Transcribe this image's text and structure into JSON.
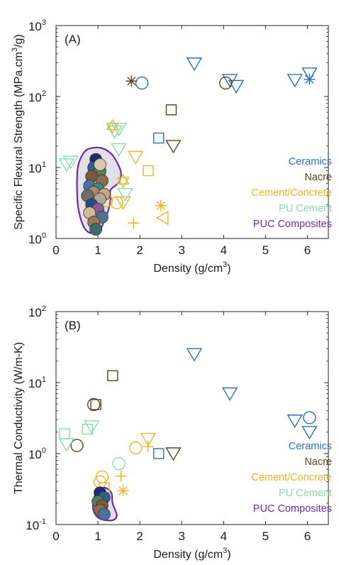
{
  "colors": {
    "Ceramics": "#2e6fb5",
    "Nacre": "#5a4420",
    "Cement/Concrete": "#f0b323",
    "PU Cement": "#86dca8",
    "PUC Composites": "#6a2d9a"
  },
  "chart_data": [
    {
      "type": "scatter",
      "panel_label": "(A)",
      "xlabel_main": "Density (g/cm",
      "xlabel_sup": "3",
      "xlabel_end": ")",
      "ylabel_main": "Specific Flexural Strength (MPa.cm",
      "ylabel_sup": "3",
      "ylabel_end": "/g)",
      "xlim": [
        0,
        6.5
      ],
      "ylim": [
        1,
        1000
      ],
      "yscale": "log",
      "x_ticks": [
        "0",
        "1",
        "2",
        "3",
        "4",
        "5",
        "6"
      ],
      "y_ticks": [
        {
          "base": "10",
          "exp": "0"
        },
        {
          "base": "10",
          "exp": "1"
        },
        {
          "base": "10",
          "exp": "2"
        },
        {
          "base": "10",
          "exp": "3"
        }
      ],
      "legend": [
        "Ceramics",
        "Nacre",
        "Cement/Concrete",
        "PU Cement",
        "PUC Composites"
      ],
      "legend_position": "lower-right",
      "series": [
        {
          "name": "Ceramics",
          "points": [
            {
              "x": 2.05,
              "y": 155,
              "m": "circle"
            },
            {
              "x": 2.45,
              "y": 26,
              "m": "square"
            },
            {
              "x": 3.3,
              "y": 290,
              "m": "tri-down"
            },
            {
              "x": 4.15,
              "y": 170,
              "m": "tri-down"
            },
            {
              "x": 4.3,
              "y": 140,
              "m": "tri-down"
            },
            {
              "x": 5.7,
              "y": 170,
              "m": "tri-down"
            },
            {
              "x": 6.05,
              "y": 210,
              "m": "tri-down"
            },
            {
              "x": 6.05,
              "y": 175,
              "m": "asterisk"
            }
          ]
        },
        {
          "name": "Nacre",
          "points": [
            {
              "x": 1.8,
              "y": 165,
              "m": "asterisk"
            },
            {
              "x": 2.75,
              "y": 65,
              "m": "square"
            },
            {
              "x": 2.8,
              "y": 20,
              "m": "tri-down"
            },
            {
              "x": 4.05,
              "y": 155,
              "m": "circle"
            }
          ]
        },
        {
          "name": "Cement/Concrete",
          "points": [
            {
              "x": 1.35,
              "y": 38,
              "m": "hexagram"
            },
            {
              "x": 1.6,
              "y": 6.5,
              "m": "hexagram"
            },
            {
              "x": 1.6,
              "y": 3.2,
              "m": "tri-down"
            },
            {
              "x": 1.9,
              "y": 14,
              "m": "tri-down"
            },
            {
              "x": 2.2,
              "y": 9,
              "m": "square"
            },
            {
              "x": 1.85,
              "y": 1.65,
              "m": "plus"
            },
            {
              "x": 2.5,
              "y": 2.9,
              "m": "asterisk"
            },
            {
              "x": 2.55,
              "y": 1.95,
              "m": "tri-left"
            },
            {
              "x": 1.2,
              "y": 3.4,
              "m": "circle"
            },
            {
              "x": 1.45,
              "y": 3.2,
              "m": "circle"
            }
          ]
        },
        {
          "name": "PU Cement",
          "points": [
            {
              "x": 0.25,
              "y": 11,
              "m": "tri-down"
            },
            {
              "x": 0.35,
              "y": 12,
              "m": "tri-down"
            },
            {
              "x": 1.4,
              "y": 32,
              "m": "tri-down"
            },
            {
              "x": 1.5,
              "y": 35,
              "m": "tri-down"
            },
            {
              "x": 1.5,
              "y": 18,
              "m": "tri-down"
            },
            {
              "x": 1.65,
              "y": 4.2,
              "m": "tri-down"
            }
          ]
        },
        {
          "name": "PUC Composites",
          "points": [
            {
              "x": 0.95,
              "y": 13,
              "m": "circle"
            },
            {
              "x": 0.9,
              "y": 10,
              "m": "circle"
            },
            {
              "x": 1.05,
              "y": 8.8,
              "m": "circle"
            },
            {
              "x": 0.85,
              "y": 7.5,
              "m": "circle"
            },
            {
              "x": 1.1,
              "y": 6.5,
              "m": "circle"
            },
            {
              "x": 0.8,
              "y": 5.5,
              "m": "circle"
            },
            {
              "x": 1.0,
              "y": 5.0,
              "m": "circle"
            },
            {
              "x": 0.9,
              "y": 4.5,
              "m": "circle"
            },
            {
              "x": 1.15,
              "y": 4.2,
              "m": "circle"
            },
            {
              "x": 0.75,
              "y": 4.0,
              "m": "circle"
            },
            {
              "x": 1.05,
              "y": 3.6,
              "m": "circle"
            },
            {
              "x": 0.85,
              "y": 3.0,
              "m": "circle"
            },
            {
              "x": 1.0,
              "y": 2.6,
              "m": "circle"
            },
            {
              "x": 0.8,
              "y": 2.3,
              "m": "circle"
            },
            {
              "x": 1.1,
              "y": 2.0,
              "m": "circle"
            },
            {
              "x": 0.9,
              "y": 1.7,
              "m": "circle"
            },
            {
              "x": 0.95,
              "y": 1.35,
              "m": "circle"
            },
            {
              "x": 1.05,
              "y": 11,
              "m": "circle"
            }
          ]
        }
      ],
      "region": [
        [
          0.6,
          14
        ],
        [
          0.75,
          18
        ],
        [
          1.05,
          19
        ],
        [
          1.3,
          16
        ],
        [
          1.45,
          12
        ],
        [
          1.55,
          8.5
        ],
        [
          1.5,
          6.2
        ],
        [
          1.3,
          4.8
        ],
        [
          1.3,
          3.5
        ],
        [
          1.25,
          2.5
        ],
        [
          1.15,
          1.8
        ],
        [
          1.05,
          1.3
        ],
        [
          0.9,
          1.18
        ],
        [
          0.72,
          1.3
        ],
        [
          0.6,
          1.8
        ],
        [
          0.52,
          3
        ],
        [
          0.5,
          6
        ],
        [
          0.52,
          10
        ]
      ]
    },
    {
      "type": "scatter",
      "panel_label": "(B)",
      "xlabel_main": "Density (g/cm",
      "xlabel_sup": "3",
      "xlabel_end": ")",
      "ylabel_main": "Thermal Conductivity (W/m-K)",
      "ylabel_sup": "",
      "ylabel_end": "",
      "xlim": [
        0,
        6.5
      ],
      "ylim": [
        0.1,
        100
      ],
      "yscale": "log",
      "x_ticks": [
        "0",
        "1",
        "2",
        "3",
        "4",
        "5",
        "6"
      ],
      "y_ticks": [
        {
          "base": "10",
          "exp": "-1"
        },
        {
          "base": "10",
          "exp": "0"
        },
        {
          "base": "10",
          "exp": "1"
        },
        {
          "base": "10",
          "exp": "2"
        }
      ],
      "legend": [
        "Ceramics",
        "Nacre",
        "Cement/Concrete",
        "PU Cement",
        "PUC Composites"
      ],
      "legend_position": "lower-right",
      "series": [
        {
          "name": "Ceramics",
          "points": [
            {
              "x": 2.45,
              "y": 1.0,
              "m": "square"
            },
            {
              "x": 3.3,
              "y": 25,
              "m": "tri-down"
            },
            {
              "x": 4.15,
              "y": 7,
              "m": "tri-down"
            },
            {
              "x": 5.7,
              "y": 2.9,
              "m": "tri-down"
            },
            {
              "x": 6.05,
              "y": 3.2,
              "m": "circle"
            },
            {
              "x": 6.05,
              "y": 2.0,
              "m": "tri-down"
            }
          ]
        },
        {
          "name": "Nacre",
          "points": [
            {
              "x": 0.5,
              "y": 1.3,
              "m": "circle"
            },
            {
              "x": 0.9,
              "y": 4.9,
              "m": "circle"
            },
            {
              "x": 0.95,
              "y": 4.9,
              "m": "square"
            },
            {
              "x": 1.35,
              "y": 12.5,
              "m": "square"
            },
            {
              "x": 2.8,
              "y": 1.0,
              "m": "tri-down"
            }
          ]
        },
        {
          "name": "Cement/Concrete",
          "points": [
            {
              "x": 1.1,
              "y": 0.47,
              "m": "circle"
            },
            {
              "x": 1.05,
              "y": 0.4,
              "m": "circle"
            },
            {
              "x": 1.15,
              "y": 0.33,
              "m": "square"
            },
            {
              "x": 1.55,
              "y": 0.48,
              "m": "plus"
            },
            {
              "x": 1.6,
              "y": 0.3,
              "m": "asterisk"
            },
            {
              "x": 1.9,
              "y": 1.2,
              "m": "circle"
            },
            {
              "x": 2.2,
              "y": 1.6,
              "m": "tri-down"
            },
            {
              "x": 2.2,
              "y": 1.25,
              "m": "plus"
            }
          ]
        },
        {
          "name": "PU Cement",
          "points": [
            {
              "x": 0.2,
              "y": 1.9,
              "m": "square"
            },
            {
              "x": 0.25,
              "y": 1.35,
              "m": "tri-down"
            },
            {
              "x": 0.75,
              "y": 2.2,
              "m": "square"
            },
            {
              "x": 0.85,
              "y": 2.4,
              "m": "tri-down"
            },
            {
              "x": 1.5,
              "y": 0.72,
              "m": "circle"
            }
          ]
        },
        {
          "name": "PUC Composites",
          "points": [
            {
              "x": 1.05,
              "y": 0.28,
              "m": "circle"
            },
            {
              "x": 1.15,
              "y": 0.24,
              "m": "circle"
            },
            {
              "x": 1.0,
              "y": 0.21,
              "m": "circle"
            },
            {
              "x": 1.1,
              "y": 0.185,
              "m": "circle"
            },
            {
              "x": 1.05,
              "y": 0.16,
              "m": "circle"
            },
            {
              "x": 1.15,
              "y": 0.14,
              "m": "circle"
            }
          ]
        }
      ],
      "region": [
        [
          0.95,
          0.27
        ],
        [
          1.15,
          0.33
        ],
        [
          1.32,
          0.28
        ],
        [
          1.35,
          0.2
        ],
        [
          1.45,
          0.135
        ],
        [
          1.35,
          0.115
        ],
        [
          1.1,
          0.118
        ],
        [
          0.95,
          0.135
        ],
        [
          0.88,
          0.18
        ]
      ]
    }
  ]
}
